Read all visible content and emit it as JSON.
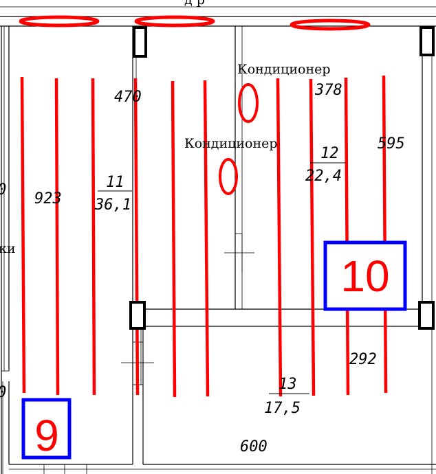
{
  "plan": {
    "top_label_fragment": "д р",
    "left_edge_fragments": [
      "0",
      "ки",
      "0"
    ],
    "rooms": [
      {
        "number": "9",
        "index_number": "11",
        "area": "36,1",
        "dimensions": [
          "470",
          "923"
        ]
      },
      {
        "number": "10",
        "index_number": "12",
        "area": "22,4",
        "dimensions": [
          "378",
          "595"
        ]
      },
      {
        "index_number": "13",
        "area": "17,5",
        "dimensions": [
          "292",
          "600"
        ]
      }
    ],
    "equipment": [
      {
        "label": "Кондиционер"
      },
      {
        "label": "Кондиционер"
      }
    ],
    "colors": {
      "heating_pipe": "#ff0000",
      "room_badge": "#0000ff",
      "walls": "#000000"
    }
  }
}
